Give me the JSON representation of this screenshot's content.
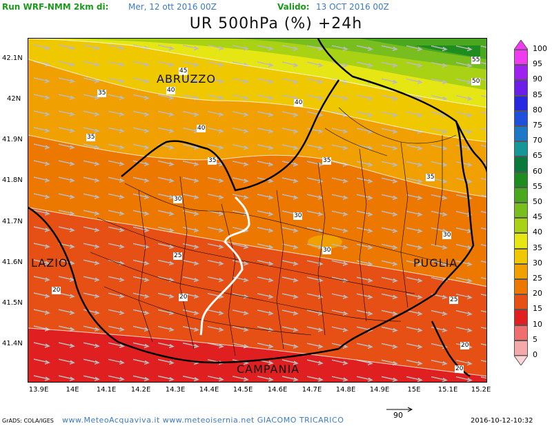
{
  "header": {
    "run": "Run WRF-NMM 2km di:",
    "run_date": "Mer, 12 ott 2016 00Z",
    "valid": "Valido:",
    "valid_date": "13 OCT 2016 00Z"
  },
  "title": "UR 500hPa (%) +24h",
  "axes": {
    "lat": [
      "42.1N",
      "42N",
      "41.9N",
      "41.8N",
      "41.7N",
      "41.6N",
      "41.5N",
      "41.4N"
    ],
    "lon": [
      "13.9E",
      "14E",
      "14.1E",
      "14.2E",
      "14.3E",
      "14.4E",
      "14.5E",
      "14.6E",
      "14.7E",
      "14.8E",
      "14.9E",
      "15E",
      "15.1E",
      "15.2E"
    ]
  },
  "regions": {
    "abruzzo": "ABRUZZO",
    "lazio": "LAZIO",
    "puglia": "PUGLIA",
    "campania": "CAMPANIA"
  },
  "contour_labels": [
    "45",
    "40",
    "35",
    "35",
    "40",
    "40",
    "35",
    "35",
    "35",
    "30",
    "30",
    "30",
    "35",
    "30",
    "25",
    "25",
    "20",
    "20",
    "20",
    "20",
    "55",
    "50"
  ],
  "legend": {
    "values": [
      "100",
      "95",
      "90",
      "85",
      "80",
      "75",
      "70",
      "65",
      "60",
      "55",
      "50",
      "45",
      "40",
      "35",
      "30",
      "25",
      "20",
      "15",
      "10",
      "5",
      "0"
    ],
    "colors": [
      "#f03cf0",
      "#a020f0",
      "#6a1ee8",
      "#2828e0",
      "#1e50dc",
      "#1e78c8",
      "#169696",
      "#0a7a3c",
      "#1e8c1e",
      "#4aa81e",
      "#78be1e",
      "#aad214",
      "#e6e614",
      "#f0c800",
      "#f0a000",
      "#ec7800",
      "#e65014",
      "#e02020",
      "#f06e6e",
      "#f4aaaa",
      "#ffd6d6"
    ]
  },
  "footer": {
    "grads": "GrADS: COLA/IGES",
    "credit": "www.MeteoAcquaviva.it www.meteoisernia.net GIACOMO TRICARICO",
    "vector_scale": "90",
    "timestamp": "2016-10-12-10:32"
  }
}
